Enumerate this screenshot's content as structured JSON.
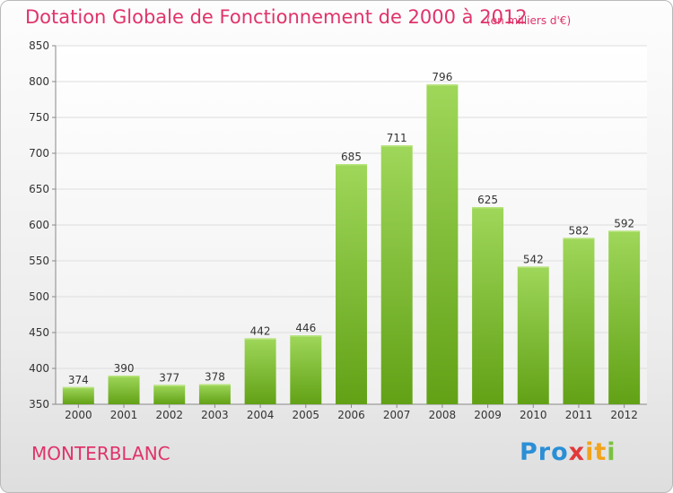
{
  "chart_data": {
    "type": "bar",
    "title": "Dotation Globale de Fonctionnement de 2000 à 2012",
    "subtitle": "(en milliers d'€)",
    "categories": [
      "2000",
      "2001",
      "2002",
      "2003",
      "2004",
      "2005",
      "2006",
      "2007",
      "2008",
      "2009",
      "2010",
      "2011",
      "2012"
    ],
    "values": [
      374,
      390,
      377,
      378,
      442,
      446,
      685,
      711,
      796,
      625,
      542,
      582,
      592
    ],
    "ylim": [
      350,
      850
    ],
    "yticks": [
      350,
      400,
      450,
      500,
      550,
      600,
      650,
      700,
      750,
      800,
      850
    ],
    "grid": true,
    "bar_color": "#7cbf2a"
  },
  "commune": "MONTERBLANC",
  "logo": {
    "text": "Proxiti",
    "parts": [
      "Pro",
      "x",
      "it",
      "i"
    ]
  }
}
